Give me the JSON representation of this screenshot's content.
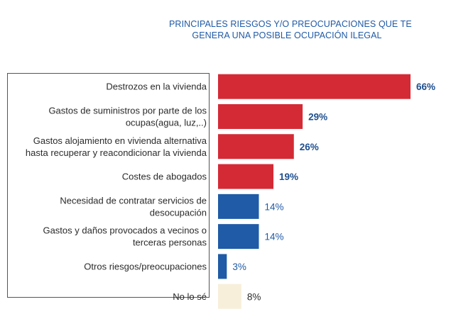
{
  "chart_data": {
    "type": "bar",
    "orientation": "horizontal",
    "title": [
      "PRINCIPALES RIESGOS Y/O PREOCUPACIONES QUE TE",
      "GENERA UNA POSIBLE OCUPACIÓN ILEGAL"
    ],
    "categories": [
      [
        "Destrozos en la vivienda"
      ],
      [
        "Gastos de suministros por parte de los",
        "ocupas(agua, luz,..)"
      ],
      [
        "Gastos alojamiento en vivienda alternativa",
        "hasta recuperar y reacondicionar la vivienda"
      ],
      [
        "Costes de abogados"
      ],
      [
        "Necesidad de contratar servicios de",
        "desocupación"
      ],
      [
        "Gastos y daños provocados a vecinos o",
        "terceras personas"
      ],
      [
        "Otros riesgos/preocupaciones"
      ],
      [
        "No lo sé"
      ]
    ],
    "values": [
      66,
      29,
      26,
      19,
      14,
      14,
      3,
      8
    ],
    "value_labels": [
      "66%",
      "29%",
      "26%",
      "19%",
      "14%",
      "14%",
      "3%",
      "8%"
    ],
    "bar_colors": [
      "#d42a35",
      "#d42a35",
      "#d42a35",
      "#d42a35",
      "#1f5ba6",
      "#1f5ba6",
      "#1f5ba6",
      "#f7efda"
    ],
    "label_colors": [
      "#1f4f8f",
      "#1f4f8f",
      "#1f4f8f",
      "#1f4f8f",
      "#1f5ba6",
      "#1f5ba6",
      "#1f5ba6",
      "#2b2b2b"
    ],
    "label_bold": [
      true,
      true,
      true,
      true,
      false,
      false,
      false,
      false
    ],
    "xlim": [
      0,
      66
    ],
    "xlabel": "",
    "ylabel": ""
  }
}
